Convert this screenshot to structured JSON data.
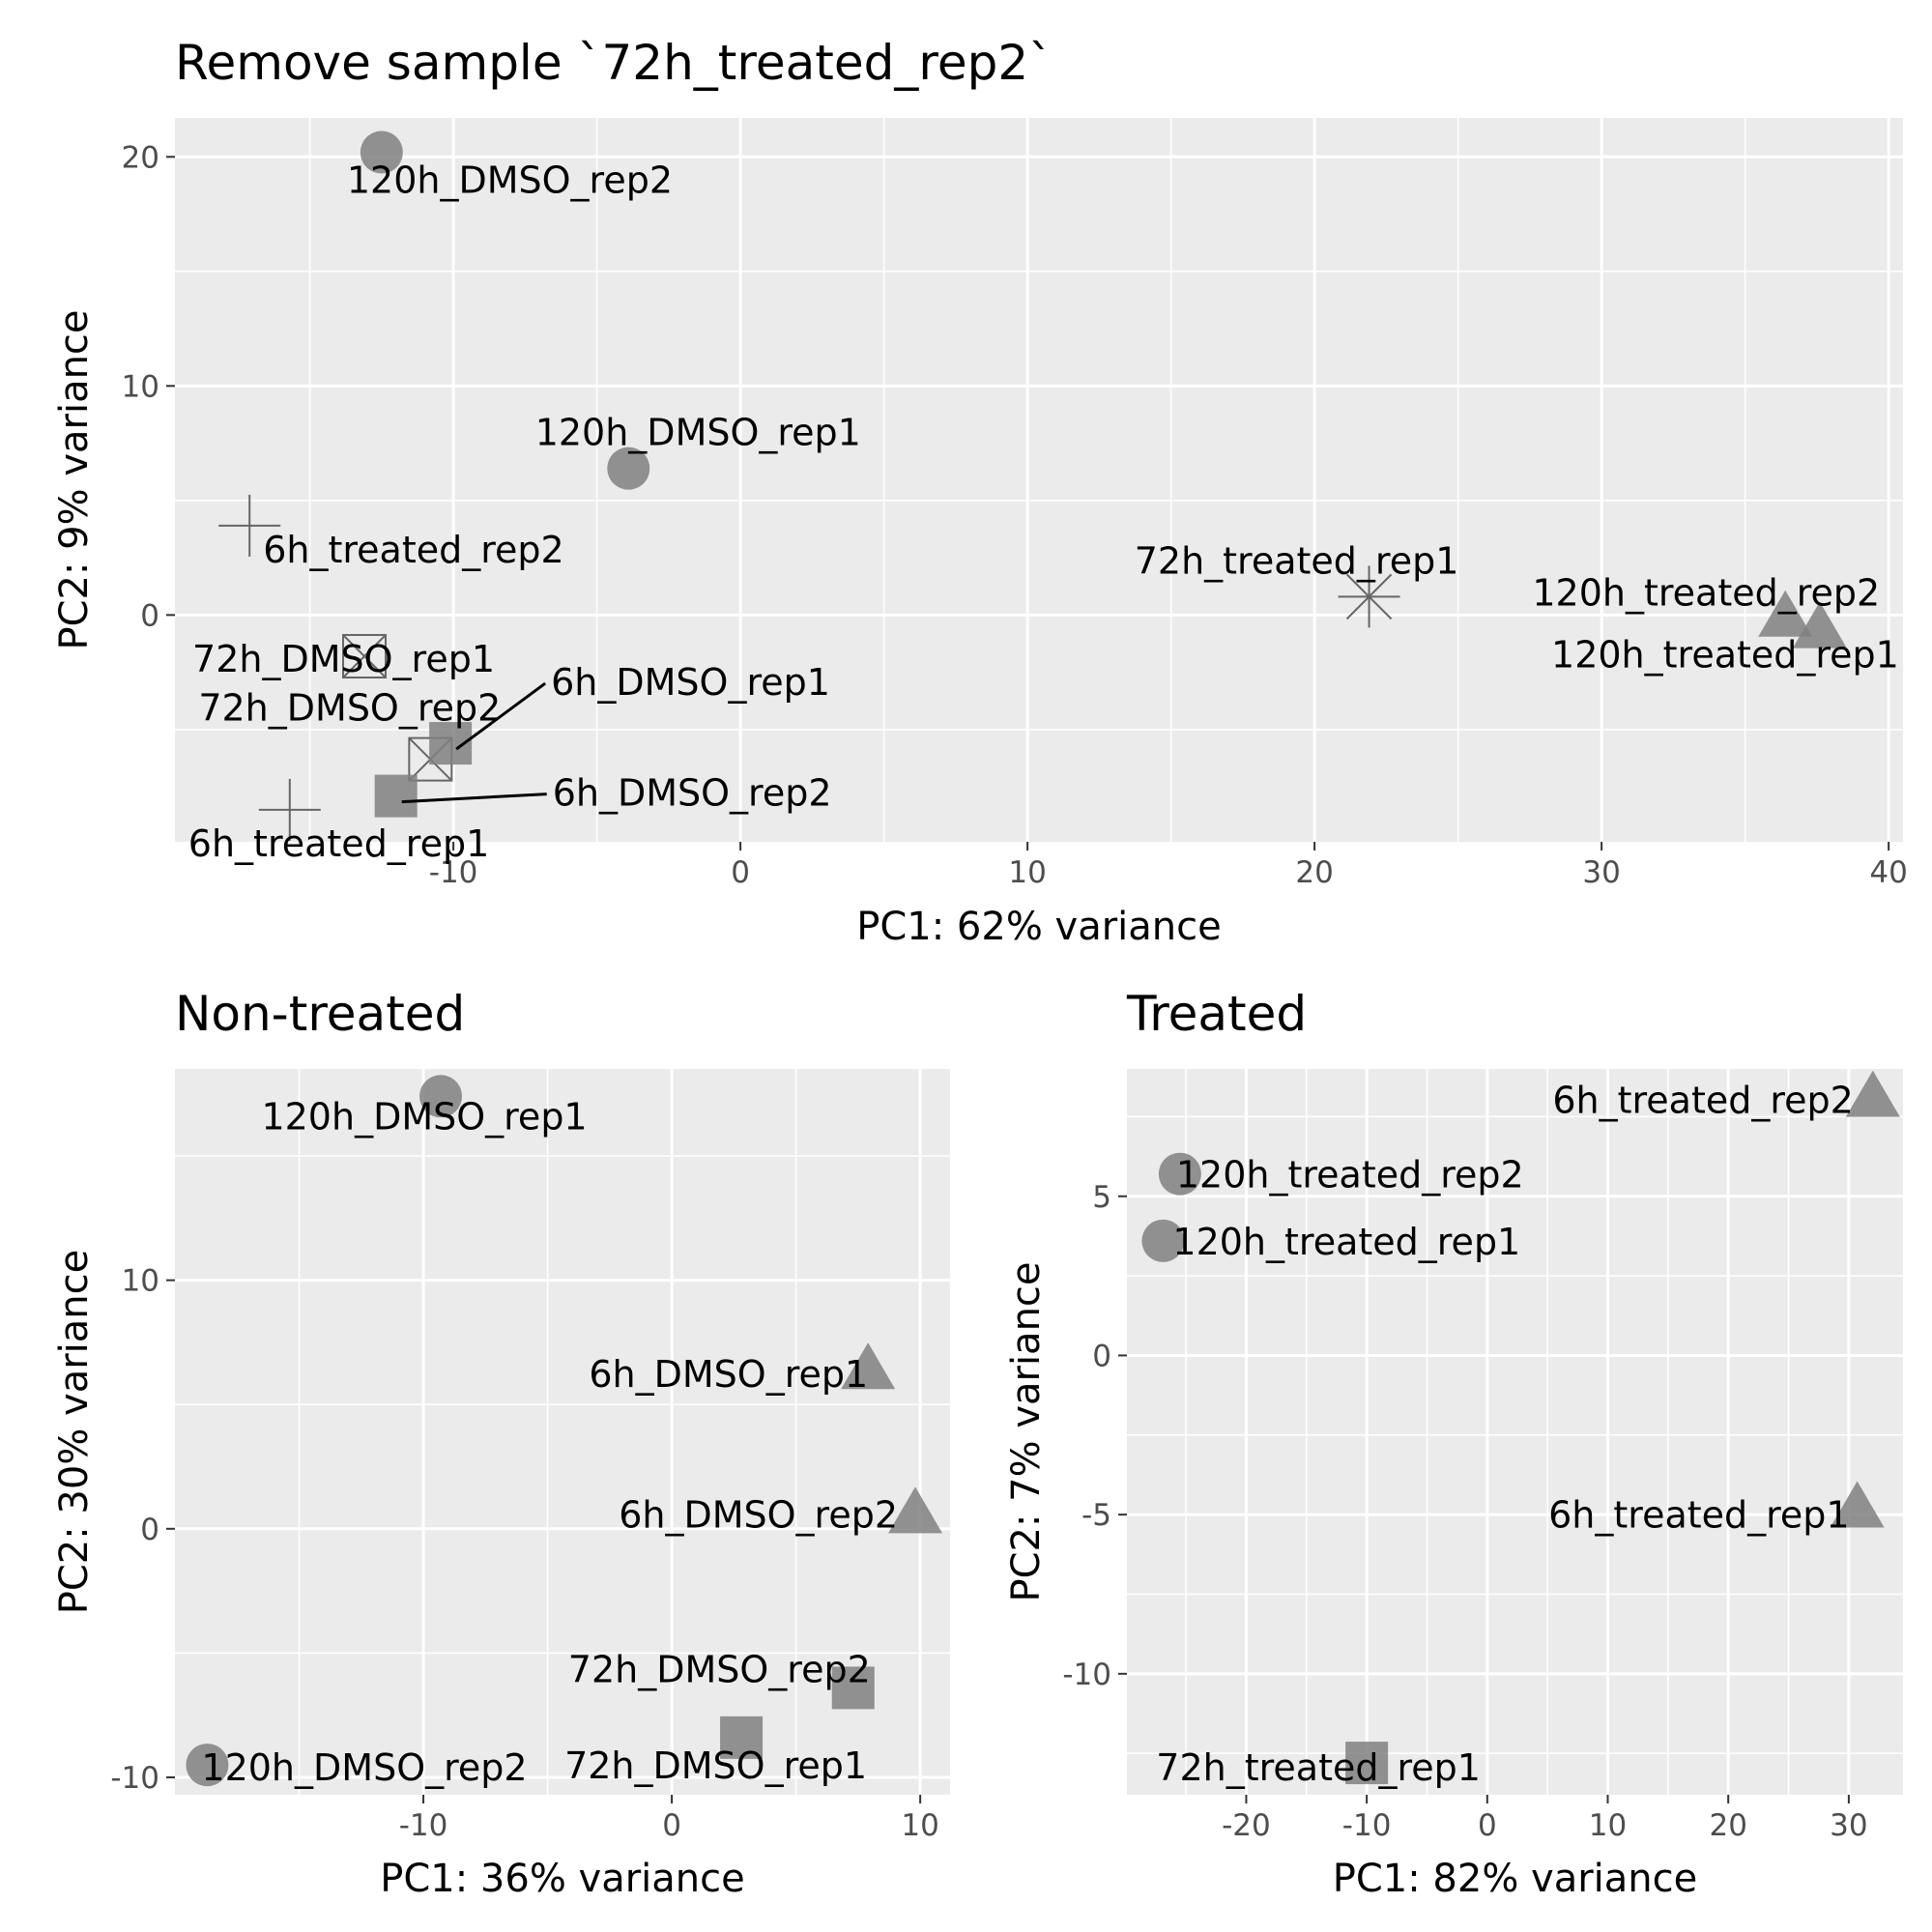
{
  "chart_data": [
    {
      "type": "scatter",
      "title": "Remove sample `72h_treated_rep2`",
      "xlabel": "PC1: 62% variance",
      "ylabel": "PC2: 9% variance",
      "xlim": [
        -19.7,
        40.5
      ],
      "ylim": [
        -9.9,
        21.7
      ],
      "xticks": [
        -10,
        0,
        10,
        20,
        30,
        40
      ],
      "yticks": [
        0,
        10,
        20
      ],
      "grid": true,
      "points": [
        {
          "label": "120h_DMSO_rep2",
          "x": -12.5,
          "y": 20.2,
          "shape": "circle"
        },
        {
          "label": "120h_DMSO_rep1",
          "x": -3.9,
          "y": 6.4,
          "shape": "circle"
        },
        {
          "label": "6h_treated_rep2",
          "x": -17.1,
          "y": 3.9,
          "shape": "plus"
        },
        {
          "label": "72h_treated_rep1",
          "x": 21.9,
          "y": 0.8,
          "shape": "asterisk"
        },
        {
          "label": "120h_treated_rep2",
          "x": 36.4,
          "y": -0.1,
          "shape": "triangle"
        },
        {
          "label": "120h_treated_rep1",
          "x": 37.6,
          "y": -0.6,
          "shape": "triangle"
        },
        {
          "label": "72h_DMSO_rep1",
          "x": -13.1,
          "y": -1.8,
          "shape": "boxcross"
        },
        {
          "label": "72h_DMSO_rep2",
          "x": -10.8,
          "y": -6.3,
          "shape": "boxcross"
        },
        {
          "label": "6h_DMSO_rep1",
          "x": -10.1,
          "y": -5.6,
          "shape": "square"
        },
        {
          "label": "6h_DMSO_rep2",
          "x": -12.0,
          "y": -7.9,
          "shape": "square"
        },
        {
          "label": "6h_treated_rep1",
          "x": -15.7,
          "y": -8.5,
          "shape": "plus"
        }
      ]
    },
    {
      "type": "scatter",
      "title": "Non-treated",
      "xlabel": "PC1: 36% variance",
      "ylabel": "PC2: 30% variance",
      "xlim": [
        -20.0,
        11.2
      ],
      "ylim": [
        -10.7,
        18.5
      ],
      "xticks": [
        -10,
        0,
        10
      ],
      "yticks": [
        -10,
        0,
        10
      ],
      "grid": true,
      "points": [
        {
          "label": "120h_DMSO_rep1",
          "x": -9.3,
          "y": 17.4,
          "shape": "circle"
        },
        {
          "label": "6h_DMSO_rep1",
          "x": 7.9,
          "y": 6.4,
          "shape": "triangle"
        },
        {
          "label": "6h_DMSO_rep2",
          "x": 9.8,
          "y": 0.6,
          "shape": "triangle"
        },
        {
          "label": "72h_DMSO_rep2",
          "x": 7.3,
          "y": -6.4,
          "shape": "square"
        },
        {
          "label": "72h_DMSO_rep1",
          "x": 2.8,
          "y": -8.4,
          "shape": "square"
        },
        {
          "label": "120h_DMSO_rep2",
          "x": -18.7,
          "y": -9.5,
          "shape": "circle"
        }
      ]
    },
    {
      "type": "scatter",
      "title": "Treated",
      "xlabel": "PC1: 82% variance",
      "ylabel": "PC2: 7% variance",
      "xlim": [
        -29.9,
        34.5
      ],
      "ylim": [
        -13.8,
        9.0
      ],
      "xticks": [
        -20,
        -10,
        0,
        10,
        20,
        30
      ],
      "yticks": [
        -10,
        -5,
        0,
        5
      ],
      "grid": true,
      "points": [
        {
          "label": "6h_treated_rep2",
          "x": 32.0,
          "y": 8.1,
          "shape": "triangle"
        },
        {
          "label": "120h_treated_rep2",
          "x": -25.5,
          "y": 5.7,
          "shape": "circle"
        },
        {
          "label": "120h_treated_rep1",
          "x": -26.9,
          "y": 3.6,
          "shape": "circle"
        },
        {
          "label": "6h_treated_rep1",
          "x": 30.7,
          "y": -4.8,
          "shape": "triangle"
        },
        {
          "label": "72h_treated_rep1",
          "x": -10.0,
          "y": -12.8,
          "shape": "square"
        }
      ]
    }
  ]
}
